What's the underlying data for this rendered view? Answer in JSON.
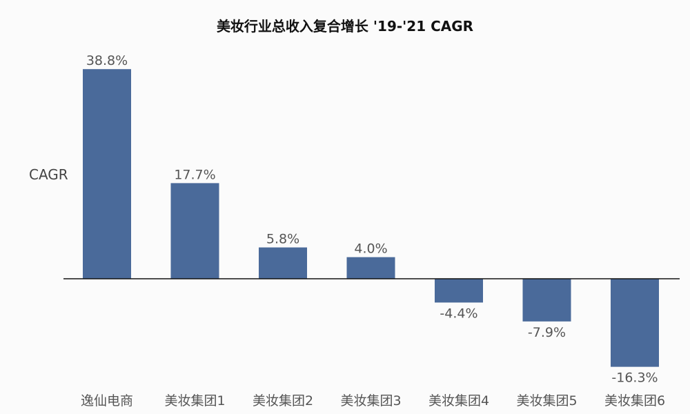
{
  "chart_data": {
    "type": "bar",
    "title": "美妆行业总收入复合增长 '19-'21 CAGR",
    "ylabel": "CAGR",
    "xlabel": "",
    "categories": [
      "逸仙电商",
      "美妆集团1",
      "美妆集团2",
      "美妆集团3",
      "美妆集团4",
      "美妆集团5",
      "美妆集团6"
    ],
    "values": [
      38.8,
      17.7,
      5.8,
      4.0,
      -4.4,
      -7.9,
      -16.3
    ],
    "value_labels": [
      "38.8%",
      "17.7%",
      "5.8%",
      "4.0%",
      "-4.4%",
      "-7.9%",
      "-16.3%"
    ],
    "value_unit": "%",
    "ylim": [
      -20,
      40
    ],
    "grid": false,
    "legend": "none",
    "bar_color": "#4a6a9a",
    "axis_color": "#111111",
    "label_color": "#555555"
  }
}
